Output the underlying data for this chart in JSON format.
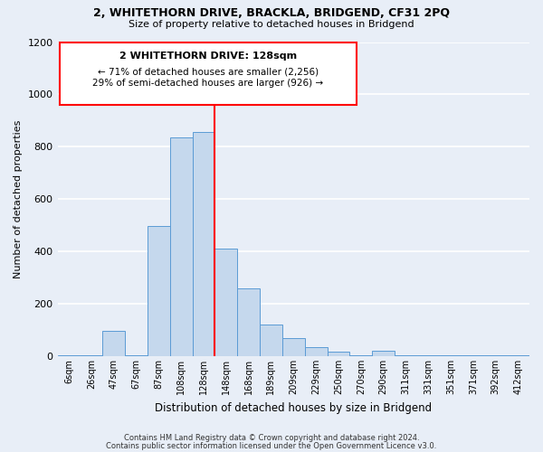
{
  "title": "2, WHITETHORN DRIVE, BRACKLA, BRIDGEND, CF31 2PQ",
  "subtitle": "Size of property relative to detached houses in Bridgend",
  "xlabel": "Distribution of detached houses by size in Bridgend",
  "ylabel": "Number of detached properties",
  "bin_labels": [
    "6sqm",
    "26sqm",
    "47sqm",
    "67sqm",
    "87sqm",
    "108sqm",
    "128sqm",
    "148sqm",
    "168sqm",
    "189sqm",
    "209sqm",
    "229sqm",
    "250sqm",
    "270sqm",
    "290sqm",
    "311sqm",
    "331sqm",
    "351sqm",
    "371sqm",
    "392sqm",
    "412sqm"
  ],
  "bar_values": [
    2,
    2,
    97,
    2,
    497,
    835,
    857,
    410,
    258,
    120,
    70,
    35,
    18,
    2,
    20,
    5,
    2,
    5,
    2,
    5,
    2
  ],
  "bar_color": "#c5d8ed",
  "bar_edge_color": "#5b9bd5",
  "red_line_index": 6,
  "annotation_title": "2 WHITETHORN DRIVE: 128sqm",
  "annotation_line1": "← 71% of detached houses are smaller (2,256)",
  "annotation_line2": "29% of semi-detached houses are larger (926) →",
  "ylim": [
    0,
    1200
  ],
  "yticks": [
    0,
    200,
    400,
    600,
    800,
    1000,
    1200
  ],
  "footer1": "Contains HM Land Registry data © Crown copyright and database right 2024.",
  "footer2": "Contains public sector information licensed under the Open Government Licence v3.0.",
  "bg_color": "#e8eef7",
  "plot_bg_color": "#e8eef7",
  "grid_color": "#ffffff"
}
